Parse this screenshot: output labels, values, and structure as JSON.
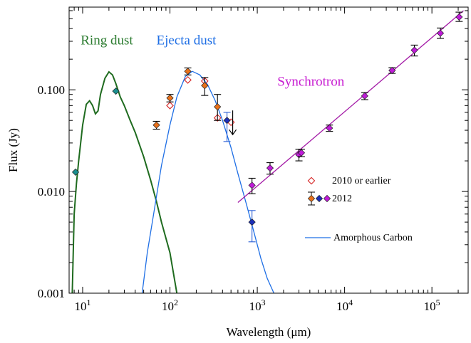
{
  "chart_data": {
    "type": "scatter",
    "title": "",
    "xlabel": "Wavelength (μm)",
    "ylabel": "Flux (Jy)",
    "xscale": "log",
    "yscale": "log",
    "xlim": [
      7,
      260000
    ],
    "ylim": [
      0.001,
      0.65
    ],
    "grid": false,
    "legend_position": "lower-right",
    "x_tick_labels": [
      {
        "value": 10,
        "base": "10",
        "exp": "1"
      },
      {
        "value": 100,
        "base": "10",
        "exp": "2"
      },
      {
        "value": 1000,
        "base": "10",
        "exp": "3"
      },
      {
        "value": 10000,
        "base": "10",
        "exp": "4"
      },
      {
        "value": 100000,
        "base": "10",
        "exp": "5"
      }
    ],
    "y_tick_labels": [
      {
        "value": 0.001,
        "label": "0.001"
      },
      {
        "value": 0.01,
        "label": "0.010"
      },
      {
        "value": 0.1,
        "label": "0.100"
      }
    ],
    "annotations": [
      {
        "text": "Ring dust",
        "color": "#2e7d32",
        "x": 9.5,
        "y": 0.28
      },
      {
        "text": "Ejecta dust",
        "color": "#1f6fe5",
        "x": 70,
        "y": 0.28
      },
      {
        "text": "Synchrotron",
        "color": "#c71ad1",
        "x": 1700,
        "y": 0.11
      }
    ],
    "legend": {
      "entries": [
        {
          "label": "2010 or earlier",
          "marker": "open-diamond",
          "color": "#d62828"
        },
        {
          "label": "2012",
          "marker": "filled-diamonds",
          "colors": [
            "#e8701a",
            "#1b2fb8",
            "#c01bd9"
          ]
        },
        {
          "label": "Amorphous Carbon",
          "marker": "line",
          "color": "#1f6fe5"
        }
      ]
    },
    "series": [
      {
        "name": "Ring dust",
        "kind": "line",
        "color": "#1f6b1f",
        "x": [
          7.6,
          8,
          8.5,
          9,
          10,
          11,
          12,
          13,
          14,
          15,
          16,
          18,
          20,
          22,
          24,
          27,
          30,
          35,
          40,
          50,
          60,
          70,
          80,
          100,
          120
        ],
        "y": [
          0.001,
          0.006,
          0.012,
          0.02,
          0.045,
          0.072,
          0.078,
          0.07,
          0.058,
          0.062,
          0.09,
          0.13,
          0.15,
          0.14,
          0.115,
          0.085,
          0.07,
          0.05,
          0.038,
          0.022,
          0.013,
          0.008,
          0.005,
          0.0025,
          0.001
        ]
      },
      {
        "name": "Amorphous Carbon",
        "kind": "line",
        "color": "#1f6fe5",
        "x": [
          48,
          55,
          65,
          80,
          100,
          120,
          150,
          180,
          220,
          270,
          330,
          400,
          500,
          600,
          750,
          900,
          1100,
          1300,
          1550
        ],
        "y": [
          0.001,
          0.0025,
          0.006,
          0.018,
          0.045,
          0.085,
          0.135,
          0.152,
          0.14,
          0.112,
          0.078,
          0.05,
          0.027,
          0.015,
          0.0075,
          0.0042,
          0.0022,
          0.0014,
          0.001
        ]
      },
      {
        "name": "Synchrotron",
        "kind": "line",
        "color": "#a31aa6",
        "x": [
          600,
          230000
        ],
        "y": [
          0.0078,
          0.6
        ]
      },
      {
        "name": "2010 or earlier",
        "kind": "points",
        "marker": "open-diamond",
        "color": "#d62828",
        "points": [
          {
            "x": 100,
            "y": 0.07
          },
          {
            "x": 160,
            "y": 0.125
          },
          {
            "x": 250,
            "y": 0.122
          },
          {
            "x": 350,
            "y": 0.053
          },
          {
            "x": 500,
            "y": 0.048
          }
        ]
      },
      {
        "name": "2012 (orange)",
        "kind": "points",
        "marker": "filled-diamond",
        "color": "#e8701a",
        "points": [
          {
            "x": 70,
            "y": 0.045,
            "err_lo": 0.004,
            "err_hi": 0.004
          },
          {
            "x": 100,
            "y": 0.083,
            "err_lo": 0.007,
            "err_hi": 0.007
          },
          {
            "x": 160,
            "y": 0.152,
            "err_lo": 0.012,
            "err_hi": 0.012
          },
          {
            "x": 250,
            "y": 0.11,
            "err_lo": 0.022,
            "err_hi": 0.022
          },
          {
            "x": 350,
            "y": 0.068,
            "err_lo": 0.018,
            "err_hi": 0.022
          }
        ]
      },
      {
        "name": "2012 (blue)",
        "kind": "points",
        "marker": "filled-diamond",
        "color": "#1b2fb8",
        "points": [
          {
            "x": 450,
            "y": 0.05,
            "err_lo": 0.019,
            "err_hi": 0.01,
            "upper_limit": true
          },
          {
            "x": 870,
            "y": 0.005,
            "err_lo": 0.0018,
            "err_hi": 0.0015
          }
        ]
      },
      {
        "name": "2012 (magenta)",
        "kind": "points",
        "marker": "filled-diamond",
        "color": "#c01bd9",
        "points": [
          {
            "x": 870,
            "y": 0.0115,
            "err_lo": 0.002,
            "err_hi": 0.002
          },
          {
            "x": 1400,
            "y": 0.017,
            "err_lo": 0.0022,
            "err_hi": 0.0022
          },
          {
            "x": 3000,
            "y": 0.023,
            "err_lo": 0.003,
            "err_hi": 0.003
          },
          {
            "x": 3200,
            "y": 0.024,
            "err_lo": 0.002,
            "err_hi": 0.002
          },
          {
            "x": 6700,
            "y": 0.042,
            "err_lo": 0.003,
            "err_hi": 0.003
          },
          {
            "x": 17000,
            "y": 0.087,
            "err_lo": 0.007,
            "err_hi": 0.007
          },
          {
            "x": 35000,
            "y": 0.155,
            "err_lo": 0.01,
            "err_hi": 0.01
          },
          {
            "x": 63000,
            "y": 0.245,
            "err_lo": 0.03,
            "err_hi": 0.03
          },
          {
            "x": 125000,
            "y": 0.36,
            "err_lo": 0.04,
            "err_hi": 0.045
          },
          {
            "x": 205000,
            "y": 0.52,
            "err_lo": 0.05,
            "err_hi": 0.06
          }
        ]
      },
      {
        "name": "Mid-IR points",
        "kind": "points",
        "marker": "filled-diamond",
        "color": "#1a8f8f",
        "points": [
          {
            "x": 8.3,
            "y": 0.0155
          },
          {
            "x": 24,
            "y": 0.097
          }
        ]
      }
    ]
  }
}
